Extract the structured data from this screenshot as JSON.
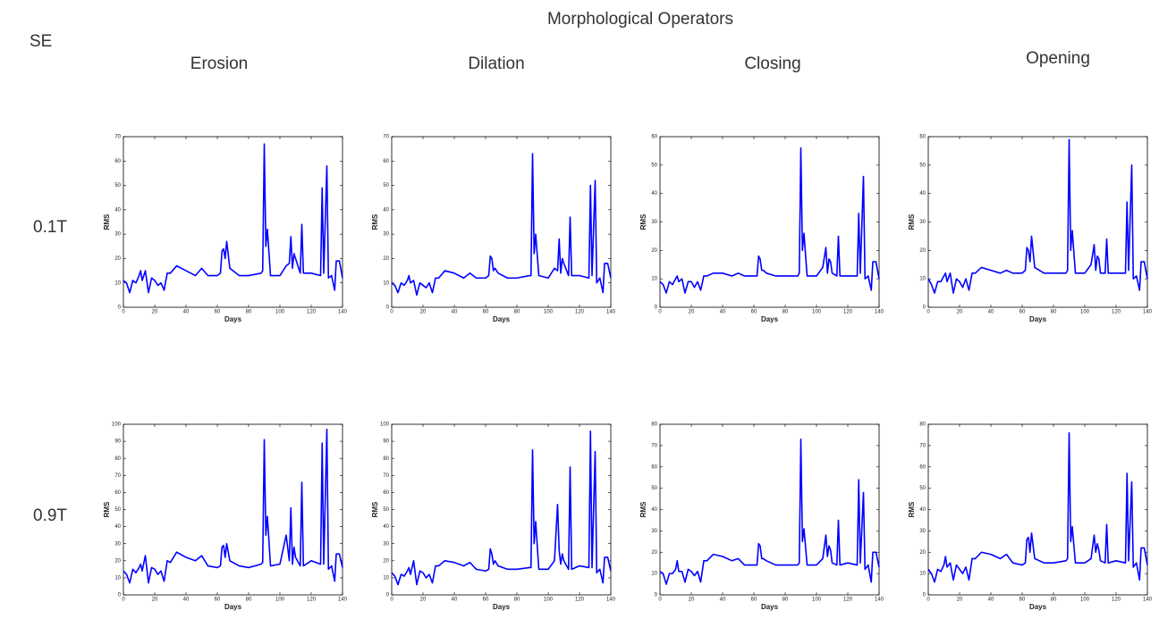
{
  "figure": {
    "title": "Morphological Operators",
    "row_header": "SE",
    "columns": [
      "Erosion",
      "Dilation",
      "Closing",
      "Opening"
    ],
    "rows": [
      "0.1T",
      "0.9T"
    ]
  },
  "chart_data": [
    {
      "type": "line",
      "xlabel": "Days",
      "ylabel": "RMS",
      "xlim": [
        0,
        140
      ],
      "xticks": [
        0,
        20,
        40,
        60,
        80,
        100,
        120,
        140
      ],
      "ylim": [
        0,
        70
      ],
      "yticks": [
        0,
        10,
        20,
        30,
        40,
        50,
        60,
        70
      ],
      "color": "#0000ff",
      "x": [
        0,
        2,
        4,
        6,
        8,
        10,
        11,
        12,
        14,
        16,
        18,
        20,
        22,
        24,
        26,
        28,
        30,
        34,
        40,
        46,
        50,
        54,
        60,
        62,
        63,
        64,
        65,
        66,
        68,
        74,
        80,
        88,
        89,
        90,
        91,
        92,
        94,
        100,
        104,
        106,
        107,
        108,
        109,
        110,
        113,
        114,
        115,
        120,
        126,
        127,
        128,
        130,
        131,
        133,
        135,
        136,
        138,
        140
      ],
      "values": [
        11,
        10,
        6,
        11,
        10,
        13,
        15,
        11,
        15,
        6,
        12,
        11,
        9,
        10,
        7,
        14,
        14,
        17,
        15,
        13,
        16,
        13,
        13,
        14,
        23,
        24,
        20,
        27,
        16,
        13,
        13,
        14,
        15,
        67,
        25,
        32,
        13,
        13,
        17,
        18,
        29,
        16,
        22,
        20,
        14,
        34,
        14,
        14,
        13,
        49,
        14,
        58,
        12,
        13,
        7,
        19,
        19,
        12
      ]
    },
    {
      "type": "line",
      "xlabel": "Days",
      "ylabel": "RMS",
      "xlim": [
        0,
        140
      ],
      "xticks": [
        0,
        20,
        40,
        60,
        80,
        100,
        120,
        140
      ],
      "ylim": [
        0,
        70
      ],
      "yticks": [
        0,
        10,
        20,
        30,
        40,
        50,
        60,
        70
      ],
      "color": "#0000ff",
      "x": [
        0,
        2,
        4,
        6,
        8,
        10,
        11,
        12,
        14,
        16,
        18,
        20,
        22,
        24,
        26,
        28,
        30,
        34,
        40,
        46,
        50,
        54,
        60,
        62,
        63,
        64,
        65,
        66,
        68,
        74,
        80,
        88,
        89,
        90,
        91,
        92,
        94,
        100,
        104,
        106,
        107,
        108,
        109,
        110,
        113,
        114,
        115,
        120,
        126,
        127,
        128,
        130,
        131,
        133,
        135,
        136,
        138,
        140
      ],
      "values": [
        10,
        9,
        6,
        10,
        9,
        11,
        13,
        10,
        11,
        5,
        10,
        9,
        8,
        10,
        6,
        12,
        12,
        15,
        14,
        12,
        14,
        12,
        12,
        13,
        21,
        20,
        15,
        16,
        14,
        12,
        12,
        13,
        13,
        63,
        22,
        30,
        13,
        12,
        16,
        15,
        28,
        14,
        20,
        18,
        13,
        37,
        13,
        13,
        12,
        50,
        13,
        52,
        10,
        12,
        6,
        18,
        18,
        12
      ]
    },
    {
      "type": "line",
      "xlabel": "Days",
      "ylabel": "RMS",
      "xlim": [
        0,
        140
      ],
      "xticks": [
        0,
        20,
        40,
        60,
        80,
        100,
        120,
        140
      ],
      "ylim": [
        0,
        60
      ],
      "yticks": [
        0,
        10,
        20,
        30,
        40,
        50,
        60
      ],
      "color": "#0000ff",
      "x": [
        0,
        2,
        4,
        6,
        8,
        10,
        11,
        12,
        14,
        16,
        18,
        20,
        22,
        24,
        26,
        28,
        30,
        34,
        40,
        46,
        50,
        54,
        60,
        62,
        63,
        64,
        65,
        66,
        68,
        74,
        80,
        88,
        89,
        90,
        91,
        92,
        94,
        100,
        104,
        106,
        107,
        108,
        109,
        110,
        113,
        114,
        115,
        120,
        126,
        127,
        128,
        130,
        131,
        133,
        135,
        136,
        138,
        140
      ],
      "values": [
        9,
        8,
        5,
        9,
        8,
        10,
        11,
        9,
        10,
        5,
        9,
        9,
        7,
        9,
        6,
        11,
        11,
        12,
        12,
        11,
        12,
        11,
        11,
        11,
        18,
        17,
        13,
        13,
        12,
        11,
        11,
        11,
        12,
        56,
        20,
        26,
        11,
        11,
        14,
        21,
        12,
        17,
        16,
        12,
        11,
        25,
        11,
        11,
        11,
        33,
        12,
        46,
        10,
        11,
        6,
        16,
        16,
        10
      ]
    },
    {
      "type": "line",
      "xlabel": "Days",
      "ylabel": "RMS",
      "xlim": [
        0,
        140
      ],
      "xticks": [
        0,
        20,
        40,
        60,
        80,
        100,
        120,
        140
      ],
      "ylim": [
        0,
        60
      ],
      "yticks": [
        0,
        10,
        20,
        30,
        40,
        50,
        60
      ],
      "color": "#0000ff",
      "x": [
        0,
        2,
        4,
        6,
        8,
        10,
        11,
        12,
        14,
        16,
        18,
        20,
        22,
        24,
        26,
        28,
        30,
        34,
        40,
        46,
        50,
        54,
        60,
        62,
        63,
        64,
        65,
        66,
        68,
        74,
        80,
        88,
        89,
        90,
        91,
        92,
        94,
        100,
        104,
        106,
        107,
        108,
        109,
        110,
        113,
        114,
        115,
        120,
        126,
        127,
        128,
        130,
        131,
        133,
        135,
        136,
        138,
        140
      ],
      "values": [
        10,
        8,
        5,
        9,
        9,
        11,
        12,
        9,
        12,
        5,
        10,
        9,
        7,
        10,
        6,
        12,
        12,
        14,
        13,
        12,
        13,
        12,
        12,
        13,
        21,
        20,
        16,
        25,
        14,
        12,
        12,
        12,
        13,
        59,
        20,
        27,
        12,
        12,
        15,
        22,
        13,
        18,
        17,
        12,
        12,
        24,
        12,
        12,
        12,
        37,
        13,
        50,
        10,
        11,
        6,
        16,
        16,
        10
      ]
    },
    {
      "type": "line",
      "xlabel": "Days",
      "ylabel": "RMS",
      "xlim": [
        0,
        140
      ],
      "xticks": [
        0,
        20,
        40,
        60,
        80,
        100,
        120,
        140
      ],
      "ylim": [
        0,
        100
      ],
      "yticks": [
        0,
        10,
        20,
        30,
        40,
        50,
        60,
        70,
        80,
        90,
        100
      ],
      "color": "#0000ff",
      "x": [
        0,
        2,
        4,
        6,
        8,
        10,
        11,
        12,
        14,
        16,
        18,
        20,
        22,
        24,
        26,
        28,
        30,
        34,
        40,
        46,
        50,
        54,
        60,
        62,
        63,
        64,
        65,
        66,
        68,
        74,
        80,
        88,
        89,
        90,
        91,
        92,
        94,
        100,
        104,
        106,
        107,
        108,
        109,
        110,
        113,
        114,
        115,
        120,
        126,
        127,
        128,
        130,
        131,
        133,
        135,
        136,
        138,
        140
      ],
      "values": [
        14,
        12,
        7,
        15,
        13,
        16,
        18,
        14,
        23,
        7,
        16,
        15,
        12,
        14,
        8,
        20,
        19,
        25,
        22,
        20,
        23,
        17,
        16,
        17,
        28,
        29,
        22,
        30,
        20,
        17,
        16,
        18,
        19,
        91,
        35,
        46,
        17,
        18,
        35,
        20,
        51,
        18,
        28,
        22,
        17,
        66,
        17,
        20,
        18,
        89,
        18,
        97,
        15,
        17,
        8,
        24,
        24,
        16
      ]
    },
    {
      "type": "line",
      "xlabel": "Days",
      "ylabel": "RMS",
      "xlim": [
        0,
        140
      ],
      "xticks": [
        0,
        20,
        40,
        60,
        80,
        100,
        120,
        140
      ],
      "ylim": [
        0,
        100
      ],
      "yticks": [
        0,
        10,
        20,
        30,
        40,
        50,
        60,
        70,
        80,
        90,
        100
      ],
      "color": "#0000ff",
      "x": [
        0,
        2,
        4,
        6,
        8,
        10,
        11,
        12,
        14,
        16,
        18,
        20,
        22,
        24,
        26,
        28,
        30,
        34,
        40,
        46,
        50,
        54,
        60,
        62,
        63,
        64,
        65,
        66,
        68,
        74,
        80,
        88,
        89,
        90,
        91,
        92,
        94,
        100,
        104,
        106,
        107,
        108,
        109,
        110,
        113,
        114,
        115,
        120,
        126,
        127,
        128,
        130,
        131,
        133,
        135,
        136,
        138,
        140
      ],
      "values": [
        13,
        11,
        6,
        12,
        11,
        14,
        16,
        12,
        20,
        6,
        14,
        13,
        10,
        12,
        7,
        17,
        17,
        20,
        19,
        17,
        19,
        15,
        14,
        15,
        27,
        24,
        18,
        20,
        17,
        15,
        15,
        16,
        16,
        85,
        30,
        43,
        15,
        15,
        20,
        53,
        26,
        18,
        24,
        20,
        15,
        75,
        15,
        17,
        16,
        96,
        16,
        84,
        13,
        15,
        7,
        22,
        22,
        14
      ]
    },
    {
      "type": "line",
      "xlabel": "Days",
      "ylabel": "RMS",
      "xlim": [
        0,
        140
      ],
      "xticks": [
        0,
        20,
        40,
        60,
        80,
        100,
        120,
        140
      ],
      "ylim": [
        0,
        80
      ],
      "yticks": [
        0,
        10,
        20,
        30,
        40,
        50,
        60,
        70,
        80
      ],
      "color": "#0000ff",
      "x": [
        0,
        2,
        4,
        6,
        8,
        10,
        11,
        12,
        14,
        16,
        18,
        20,
        22,
        24,
        26,
        28,
        30,
        34,
        40,
        46,
        50,
        54,
        60,
        62,
        63,
        64,
        65,
        66,
        68,
        74,
        80,
        88,
        89,
        90,
        91,
        92,
        94,
        100,
        104,
        106,
        107,
        108,
        109,
        110,
        113,
        114,
        115,
        120,
        126,
        127,
        128,
        130,
        131,
        133,
        135,
        136,
        138,
        140
      ],
      "values": [
        11,
        10,
        5,
        10,
        10,
        12,
        16,
        11,
        11,
        6,
        12,
        11,
        9,
        11,
        6,
        16,
        16,
        19,
        18,
        16,
        17,
        14,
        14,
        14,
        24,
        23,
        17,
        17,
        16,
        14,
        14,
        14,
        15,
        73,
        25,
        31,
        14,
        14,
        17,
        28,
        18,
        23,
        21,
        15,
        14,
        35,
        14,
        15,
        14,
        54,
        15,
        48,
        12,
        14,
        6,
        20,
        20,
        13
      ]
    },
    {
      "type": "line",
      "xlabel": "Days",
      "ylabel": "RMS",
      "xlim": [
        0,
        140
      ],
      "xticks": [
        0,
        20,
        40,
        60,
        80,
        100,
        120,
        140
      ],
      "ylim": [
        0,
        80
      ],
      "yticks": [
        0,
        10,
        20,
        30,
        40,
        50,
        60,
        70,
        80
      ],
      "color": "#0000ff",
      "x": [
        0,
        2,
        4,
        6,
        8,
        10,
        11,
        12,
        14,
        16,
        18,
        20,
        22,
        24,
        26,
        28,
        30,
        34,
        40,
        46,
        50,
        54,
        60,
        62,
        63,
        64,
        65,
        66,
        68,
        74,
        80,
        88,
        89,
        90,
        91,
        92,
        94,
        100,
        104,
        106,
        107,
        108,
        109,
        110,
        113,
        114,
        115,
        120,
        126,
        127,
        128,
        130,
        131,
        133,
        135,
        136,
        138,
        140
      ],
      "values": [
        12,
        10,
        6,
        12,
        11,
        14,
        18,
        13,
        15,
        7,
        14,
        12,
        10,
        13,
        7,
        17,
        17,
        20,
        19,
        17,
        19,
        15,
        14,
        15,
        26,
        27,
        20,
        29,
        17,
        15,
        15,
        16,
        17,
        76,
        25,
        32,
        15,
        15,
        17,
        28,
        20,
        24,
        21,
        16,
        15,
        33,
        15,
        16,
        15,
        57,
        16,
        53,
        13,
        15,
        7,
        22,
        22,
        14
      ]
    }
  ]
}
